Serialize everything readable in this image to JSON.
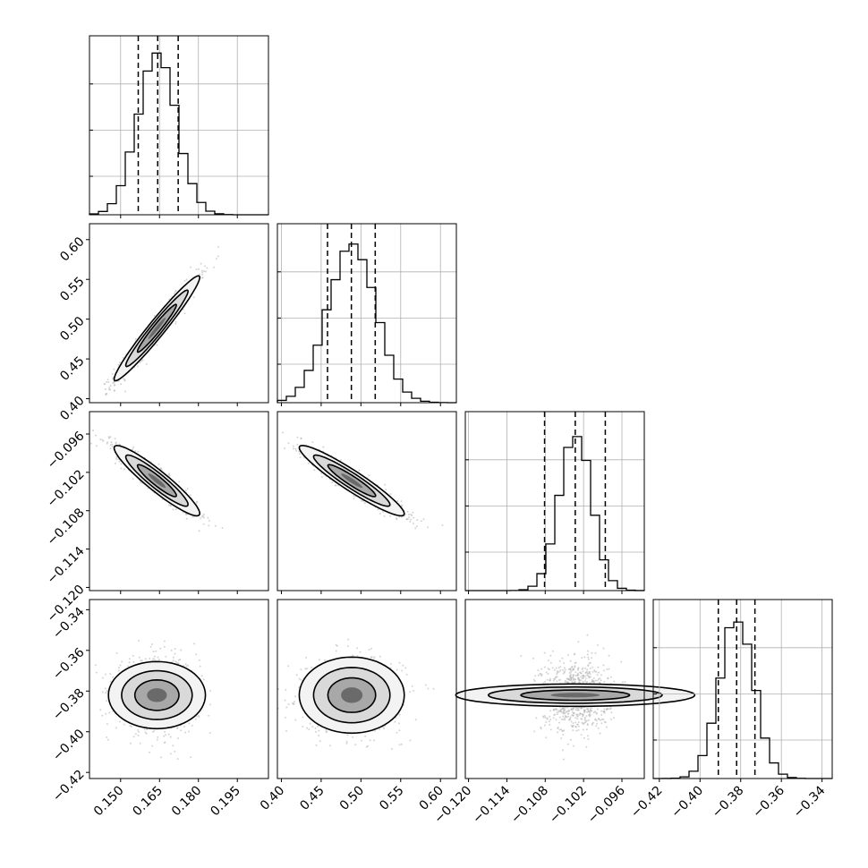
{
  "chart_data": {
    "type": "corner",
    "parameters": 4,
    "x_axes": [
      {
        "range": [
          0.138,
          0.207
        ],
        "ticks": [
          "0.150",
          "0.165",
          "0.180",
          "0.195"
        ],
        "tick_values": [
          0.15,
          0.165,
          0.18,
          0.195
        ]
      },
      {
        "range": [
          0.395,
          0.62
        ],
        "ticks": [
          "0.40",
          "0.45",
          "0.50",
          "0.55",
          "0.60"
        ],
        "tick_values": [
          0.4,
          0.45,
          0.5,
          0.55,
          0.6
        ]
      },
      {
        "range": [
          -0.1205,
          -0.0925
        ],
        "ticks": [
          "−0.120",
          "−0.114",
          "−0.108",
          "−0.102",
          "−0.096"
        ],
        "tick_values": [
          -0.12,
          -0.114,
          -0.108,
          -0.102,
          -0.096
        ]
      },
      {
        "range": [
          -0.423,
          -0.335
        ],
        "ticks": [
          "−0.42",
          "−0.40",
          "−0.38",
          "−0.36",
          "−0.34"
        ],
        "tick_values": [
          -0.42,
          -0.4,
          -0.38,
          -0.36,
          -0.34
        ]
      }
    ],
    "y_axes": [
      null,
      {
        "range": [
          0.395,
          0.62
        ],
        "ticks": [
          "0.40",
          "0.45",
          "0.50",
          "0.55",
          "0.60"
        ],
        "tick_values": [
          0.4,
          0.45,
          0.5,
          0.55,
          0.6
        ]
      },
      {
        "range": [
          -0.1205,
          -0.0925
        ],
        "ticks": [
          "−0.120",
          "−0.114",
          "−0.108",
          "−0.102",
          "−0.096"
        ],
        "tick_values": [
          -0.12,
          -0.114,
          -0.108,
          -0.102,
          -0.096
        ]
      },
      {
        "range": [
          -0.423,
          -0.335
        ],
        "ticks": [
          "−0.42",
          "−0.40",
          "−0.38",
          "−0.36",
          "−0.34"
        ],
        "tick_values": [
          -0.42,
          -0.4,
          -0.38,
          -0.36,
          -0.34
        ]
      }
    ],
    "marginals": [
      {
        "mean": 0.164,
        "std": 0.0075,
        "quantiles": [
          0.1568,
          0.1643,
          0.1722
        ]
      },
      {
        "mean": 0.4885,
        "std": 0.03,
        "quantiles": [
          0.458,
          0.488,
          0.518
        ]
      },
      {
        "mean": -0.1033,
        "std": 0.0025,
        "quantiles": [
          -0.1081,
          -0.1033,
          -0.0986
        ]
      },
      {
        "mean": -0.382,
        "std": 0.0085,
        "quantiles": [
          -0.391,
          -0.382,
          -0.373
        ]
      }
    ],
    "correlations": [
      [
        1,
        0.97,
        -0.93,
        0.0
      ],
      [
        0.97,
        1,
        -0.94,
        0.0
      ],
      [
        -0.93,
        -0.94,
        1,
        0.0
      ],
      [
        0.0,
        0.0,
        0.0,
        1
      ]
    ],
    "grid": true,
    "colors": {
      "hist": "#000000",
      "quantile_line": "#000000",
      "points": "#b0b0b0",
      "grid": "#b0b0b0"
    }
  }
}
